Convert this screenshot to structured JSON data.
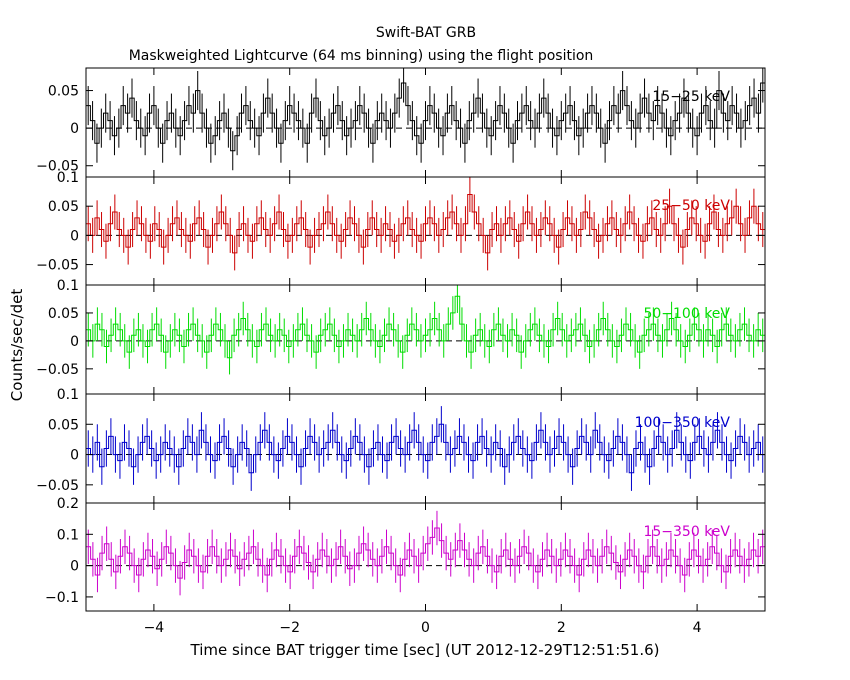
{
  "chart_data": {
    "type": "line",
    "title": "Swift-BAT GRB",
    "subtitle": "Maskweighted Lightcurve (64 ms binning) using the flight position",
    "xlabel": "Time since BAT trigger time [sec] (UT 2012-12-29T12:51:51.6)",
    "ylabel": "Counts/sec/det",
    "xlim": [
      -5.0,
      5.0
    ],
    "x_ticks": [
      -4,
      -2,
      0,
      2,
      4
    ],
    "x_tick_labels": [
      "−4",
      "−2",
      "0",
      "2",
      "4"
    ],
    "bin_width_sec": 0.064,
    "panels": [
      {
        "name": "15−25 keV",
        "color": "#000000",
        "ylim": [
          -0.065,
          0.08
        ],
        "y_ticks": [
          -0.05,
          0,
          0.05
        ],
        "y_tick_labels": [
          "−0.05",
          "0",
          "0.05"
        ],
        "typical_error": 0.026,
        "values": [
          0.03,
          0.01,
          -0.02,
          0.0,
          0.02,
          0.01,
          -0.01,
          0.0,
          0.03,
          0.02,
          0.04,
          0.01,
          0.0,
          -0.01,
          0.02,
          0.03,
          0.0,
          -0.02,
          0.01,
          0.02,
          0.0,
          -0.01,
          0.01,
          0.03,
          0.02,
          0.05,
          0.02,
          0.0,
          -0.02,
          -0.01,
          0.01,
          0.02,
          0.0,
          -0.03,
          -0.01,
          0.02,
          0.03,
          0.01,
          0.0,
          -0.01,
          0.02,
          0.04,
          0.02,
          0.0,
          -0.02,
          0.01,
          0.03,
          0.02,
          0.01,
          0.0,
          -0.02,
          0.02,
          0.04,
          0.01,
          -0.01,
          0.0,
          0.02,
          0.03,
          0.01,
          -0.01,
          0.0,
          0.01,
          0.03,
          0.02,
          0.0,
          -0.02,
          0.01,
          0.02,
          0.01,
          0.0,
          0.02,
          0.04,
          0.06,
          0.03,
          0.01,
          -0.01,
          -0.02,
          0.01,
          0.03,
          0.02,
          0.0,
          -0.01,
          0.02,
          0.03,
          0.01,
          0.0,
          -0.02,
          0.01,
          0.02,
          0.04,
          0.02,
          0.0,
          -0.01,
          0.01,
          0.03,
          0.02,
          0.0,
          -0.02,
          0.01,
          0.02,
          0.03,
          0.01,
          0.0,
          0.02,
          0.04,
          0.02,
          0.0,
          -0.01,
          0.01,
          0.02,
          0.03,
          0.01,
          -0.01,
          0.0,
          0.02,
          0.03,
          0.02,
          0.0,
          -0.02,
          0.01,
          0.03,
          0.02,
          0.05,
          0.03,
          0.01,
          0.0,
          0.02,
          0.04,
          0.02,
          0.01,
          0.03,
          0.02,
          0.0,
          -0.01,
          0.01,
          0.02,
          0.04,
          0.02,
          0.0,
          -0.01,
          0.02,
          0.03,
          0.01,
          0.0,
          0.05,
          0.02,
          0.01,
          0.03,
          0.02,
          0.0,
          0.01,
          0.03,
          0.04,
          0.02,
          0.06
        ]
      },
      {
        "name": "25−50 keV",
        "color": "#cc0000",
        "ylim": [
          -0.085,
          0.1
        ],
        "y_ticks": [
          -0.05,
          0,
          0.05,
          0.1
        ],
        "y_tick_labels": [
          "−0.05",
          "0",
          "0.05",
          "0.1"
        ],
        "typical_error": 0.03,
        "values": [
          0.02,
          0.0,
          0.03,
          0.01,
          -0.01,
          0.02,
          0.04,
          0.01,
          0.0,
          -0.02,
          0.01,
          0.03,
          0.02,
          0.0,
          -0.01,
          0.02,
          0.01,
          -0.02,
          0.0,
          0.02,
          0.03,
          0.01,
          0.0,
          -0.01,
          0.02,
          0.03,
          0.01,
          -0.02,
          0.0,
          0.02,
          0.04,
          0.02,
          0.0,
          -0.03,
          0.01,
          0.02,
          0.0,
          -0.01,
          0.02,
          0.03,
          0.01,
          0.0,
          0.02,
          0.04,
          0.01,
          -0.01,
          0.0,
          0.02,
          0.03,
          0.01,
          -0.02,
          0.0,
          0.01,
          0.02,
          0.04,
          0.02,
          0.0,
          -0.01,
          0.01,
          0.03,
          0.02,
          0.0,
          -0.02,
          0.01,
          0.03,
          0.01,
          0.0,
          0.02,
          0.01,
          -0.01,
          0.0,
          0.02,
          0.03,
          0.01,
          0.0,
          -0.01,
          0.02,
          0.03,
          0.02,
          0.0,
          0.01,
          0.03,
          0.04,
          0.02,
          0.0,
          0.02,
          0.07,
          0.04,
          0.02,
          0.0,
          -0.03,
          0.01,
          0.02,
          0.0,
          0.02,
          0.03,
          0.01,
          -0.01,
          0.02,
          0.04,
          0.02,
          0.0,
          0.01,
          0.03,
          0.02,
          0.0,
          -0.02,
          0.01,
          0.03,
          0.02,
          0.0,
          0.01,
          0.04,
          0.03,
          0.01,
          -0.01,
          0.0,
          0.02,
          0.03,
          0.01,
          0.0,
          0.02,
          0.04,
          0.02,
          0.0,
          -0.01,
          0.02,
          0.03,
          0.01,
          0.0,
          0.02,
          0.05,
          0.02,
          0.0,
          -0.02,
          0.01,
          0.03,
          0.02,
          0.0,
          -0.01,
          0.02,
          0.04,
          0.01,
          0.0,
          0.02,
          0.03,
          0.05,
          0.02,
          0.0,
          0.03,
          0.05,
          0.02,
          0.01
        ]
      },
      {
        "name": "50−100 keV",
        "color": "#00dd00",
        "ylim": [
          -0.095,
          0.1
        ],
        "y_ticks": [
          -0.05,
          0,
          0.05,
          0.1
        ],
        "y_tick_labels": [
          "−0.05",
          "0",
          "0.05",
          "0.1"
        ],
        "typical_error": 0.03,
        "values": [
          0.02,
          0.0,
          0.03,
          0.02,
          -0.01,
          0.01,
          0.03,
          0.02,
          0.0,
          -0.02,
          0.01,
          0.02,
          0.0,
          -0.01,
          0.02,
          0.03,
          0.01,
          -0.02,
          0.0,
          0.02,
          0.01,
          -0.01,
          0.02,
          0.03,
          0.01,
          0.0,
          -0.02,
          0.01,
          0.03,
          0.02,
          0.0,
          -0.03,
          0.01,
          0.02,
          0.04,
          0.02,
          0.0,
          -0.01,
          0.02,
          0.03,
          0.01,
          0.0,
          0.02,
          0.01,
          -0.01,
          0.0,
          0.02,
          0.03,
          0.01,
          0.0,
          -0.02,
          0.01,
          0.02,
          0.03,
          0.01,
          -0.01,
          0.0,
          0.02,
          0.01,
          0.0,
          0.02,
          0.04,
          0.02,
          0.0,
          -0.01,
          0.01,
          0.03,
          0.02,
          0.0,
          -0.02,
          0.01,
          0.03,
          0.02,
          0.0,
          0.01,
          0.02,
          0.04,
          0.02,
          0.0,
          0.03,
          0.05,
          0.08,
          0.03,
          0.0,
          -0.02,
          0.01,
          0.02,
          0.0,
          -0.01,
          0.02,
          0.03,
          0.01,
          0.0,
          0.02,
          0.01,
          -0.02,
          0.0,
          0.02,
          0.03,
          0.01,
          0.0,
          -0.01,
          0.02,
          0.04,
          0.02,
          0.0,
          0.01,
          0.02,
          0.03,
          0.01,
          -0.01,
          0.0,
          0.02,
          0.04,
          0.02,
          0.0,
          -0.01,
          0.01,
          0.03,
          0.02,
          0.0,
          -0.02,
          0.01,
          0.02,
          0.03,
          0.01,
          0.0,
          0.02,
          0.04,
          0.02,
          0.0,
          -0.01,
          0.01,
          0.03,
          0.02,
          0.0,
          0.02,
          0.01,
          -0.01,
          0.02,
          0.03,
          0.01,
          0.0,
          0.02,
          0.03,
          0.01,
          0.0,
          0.02,
          0.01
        ]
      },
      {
        "name": "100−350 keV",
        "color": "#0000cc",
        "ylim": [
          -0.08,
          0.1
        ],
        "y_ticks": [
          -0.05,
          0,
          0.05,
          0.1
        ],
        "y_tick_labels": [
          "−0.05",
          "0",
          "0.05",
          "0.1"
        ],
        "typical_error": 0.03,
        "values": [
          0.01,
          0.0,
          0.02,
          -0.02,
          0.01,
          0.03,
          0.0,
          -0.01,
          0.02,
          0.01,
          -0.02,
          0.0,
          0.02,
          0.03,
          0.01,
          -0.01,
          0.0,
          0.02,
          0.01,
          0.0,
          -0.02,
          0.01,
          0.03,
          0.02,
          0.0,
          0.04,
          0.02,
          0.0,
          -0.01,
          0.02,
          0.03,
          0.01,
          -0.02,
          0.0,
          0.02,
          0.01,
          -0.03,
          0.0,
          0.02,
          0.04,
          0.02,
          0.0,
          -0.01,
          0.01,
          0.03,
          0.02,
          0.0,
          -0.02,
          0.01,
          0.03,
          0.02,
          0.0,
          0.01,
          0.02,
          0.04,
          0.02,
          0.0,
          -0.01,
          0.01,
          0.03,
          0.02,
          0.0,
          -0.02,
          0.01,
          0.02,
          0.0,
          -0.01,
          0.02,
          0.03,
          0.01,
          0.0,
          0.02,
          0.04,
          0.02,
          0.0,
          -0.01,
          0.02,
          0.03,
          0.05,
          0.02,
          0.0,
          0.01,
          0.03,
          0.02,
          0.0,
          -0.01,
          0.02,
          0.03,
          0.01,
          0.0,
          0.02,
          0.01,
          -0.02,
          0.0,
          0.02,
          0.03,
          0.01,
          0.0,
          -0.01,
          0.02,
          0.04,
          0.02,
          0.0,
          0.01,
          0.03,
          0.02,
          0.0,
          -0.02,
          0.01,
          0.03,
          0.02,
          0.0,
          0.04,
          0.02,
          0.0,
          -0.01,
          0.01,
          0.03,
          0.02,
          0.0,
          -0.03,
          0.01,
          0.02,
          0.0,
          -0.02,
          0.01,
          0.03,
          0.02,
          0.0,
          0.01,
          0.04,
          0.02,
          0.0,
          -0.01,
          0.02,
          0.03,
          0.01,
          0.0,
          0.02,
          0.04,
          0.02,
          0.0,
          -0.01,
          0.01,
          0.03,
          0.02,
          0.0,
          0.01,
          0.02,
          0.0
        ]
      },
      {
        "name": "15−350 keV",
        "color": "#cc00cc",
        "ylim": [
          -0.145,
          0.2
        ],
        "y_ticks": [
          -0.1,
          0,
          0.1,
          0.2
        ],
        "y_tick_labels": [
          "−0.1",
          "0",
          "0.1",
          "0.2"
        ],
        "typical_error": 0.055,
        "values": [
          0.06,
          0.02,
          -0.03,
          0.04,
          0.07,
          0.02,
          -0.02,
          0.03,
          0.06,
          0.04,
          0.0,
          -0.03,
          0.02,
          0.05,
          0.03,
          -0.01,
          0.02,
          0.06,
          0.04,
          0.0,
          -0.04,
          0.01,
          0.05,
          0.03,
          0.0,
          -0.02,
          0.03,
          0.06,
          0.03,
          0.0,
          0.02,
          0.05,
          0.03,
          -0.01,
          0.02,
          0.04,
          0.06,
          0.02,
          0.0,
          -0.03,
          0.02,
          0.05,
          0.03,
          0.0,
          -0.02,
          0.03,
          0.06,
          0.04,
          0.01,
          -0.02,
          0.02,
          0.05,
          0.03,
          0.0,
          0.02,
          0.06,
          0.03,
          -0.01,
          0.0,
          0.04,
          0.07,
          0.05,
          0.02,
          0.0,
          0.03,
          0.06,
          0.04,
          0.0,
          -0.03,
          0.02,
          0.05,
          0.03,
          0.0,
          0.04,
          0.07,
          0.09,
          0.12,
          0.08,
          0.04,
          0.02,
          0.05,
          0.08,
          0.05,
          0.02,
          0.0,
          0.04,
          0.06,
          0.03,
          0.0,
          -0.02,
          0.03,
          0.05,
          0.02,
          0.0,
          0.03,
          0.06,
          0.04,
          0.0,
          -0.02,
          0.02,
          0.05,
          0.03,
          0.0,
          0.02,
          0.05,
          0.03,
          0.0,
          -0.03,
          0.02,
          0.05,
          0.03,
          0.0,
          0.03,
          0.06,
          0.04,
          0.01,
          -0.02,
          0.02,
          0.05,
          0.03,
          0.0,
          -0.02,
          0.03,
          0.06,
          0.03,
          0.0,
          0.02,
          0.05,
          0.03,
          0.0,
          -0.03,
          0.02,
          0.05,
          0.03,
          0.0,
          0.02,
          0.06,
          0.04,
          0.0,
          -0.02,
          0.03,
          0.05,
          0.03,
          0.0,
          0.02,
          0.05,
          0.03,
          0.06
        ]
      }
    ]
  }
}
